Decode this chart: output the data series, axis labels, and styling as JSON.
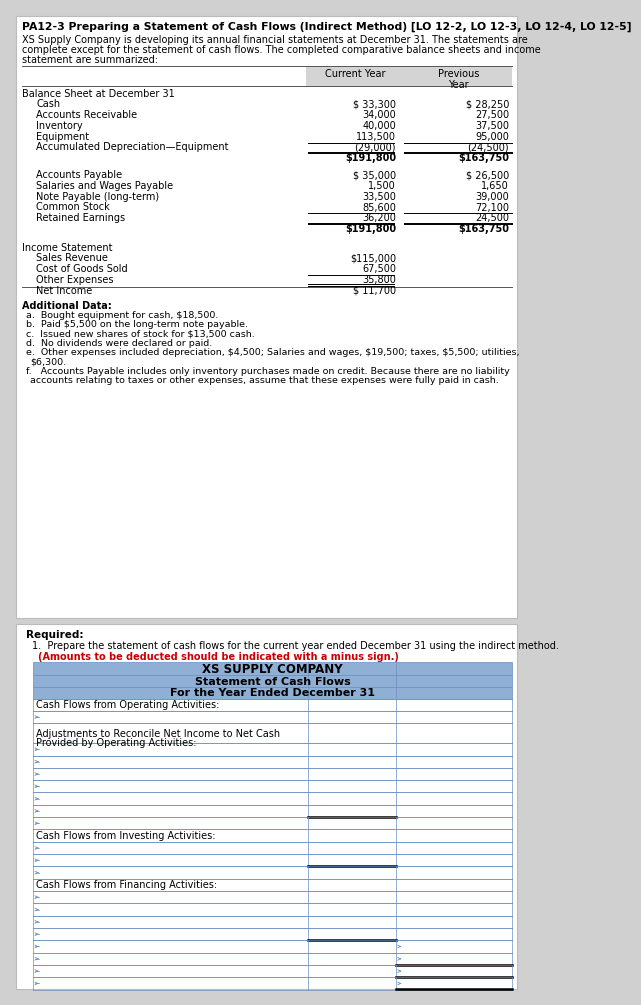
{
  "title": "PA12-3 Preparing a Statement of Cash Flows (Indirect Method) [LO 12-2, LO 12-3, LO 12-4, LO 12-5]",
  "intro_text": "XS Supply Company is developing its annual financial statements at December 31. The statements are\ncomplete except for the statement of cash flows. The completed comparative balance sheets and income\nstatement are summarized:",
  "balance_sheet_label": "Balance Sheet at December 31",
  "bs_assets": [
    [
      "Cash",
      "$ 33,300",
      "$ 28,250"
    ],
    [
      "Accounts Receivable",
      "34,000",
      "27,500"
    ],
    [
      "Inventory",
      "40,000",
      "37,500"
    ],
    [
      "Equipment",
      "113,500",
      "95,000"
    ],
    [
      "Accumulated Depreciation—Equipment",
      "(29,000)",
      "(24,500)"
    ]
  ],
  "bs_assets_total": [
    "$191,800",
    "$163,750"
  ],
  "bs_liabilities": [
    [
      "Accounts Payable",
      "$ 35,000",
      "$ 26,500"
    ],
    [
      "Salaries and Wages Payable",
      "1,500",
      "1,650"
    ],
    [
      "Note Payable (long-term)",
      "33,500",
      "39,000"
    ],
    [
      "Common Stock",
      "85,600",
      "72,100"
    ],
    [
      "Retained Earnings",
      "36,200",
      "24,500"
    ]
  ],
  "bs_liabilities_total": [
    "$191,800",
    "$163,750"
  ],
  "income_statement_label": "Income Statement",
  "is_items": [
    [
      "Sales Revenue",
      "$115,000"
    ],
    [
      "Cost of Goods Sold",
      "67,500"
    ],
    [
      "Other Expenses",
      "35,800"
    ]
  ],
  "is_net_income": [
    "Net Income",
    "$ 11,700"
  ],
  "additional_data_title": "Additional Data:",
  "additional_data": [
    "a.  Bought equipment for cash, $18,500.",
    "b.  Paid $5,500 on the long-term note payable.",
    "c.  Issued new shares of stock for $13,500 cash.",
    "d.  No dividends were declared or paid.",
    "e.  Other expenses included depreciation, $4,500; Salaries and wages, $19,500; taxes, $5,500; utilities,||     $6,300.",
    "f.   Accounts Payable includes only inventory purchases made on credit. Because there are no liability||     accounts relating to taxes or other expenses, assume that these expenses were fully paid in cash."
  ],
  "required_text": "Required:",
  "required_item": "1.  Prepare the statement of cash flows for the current year ended December 31 using the indirect method.",
  "required_note": "(Amounts to be deducted should be indicated with a minus sign.)",
  "cf_company": "XS SUPPLY COMPANY",
  "cf_title": "Statement of Cash Flows",
  "cf_subtitle": "For the Year Ended December 31",
  "header_bg": "#8fafd4",
  "table_border": "#6a8fbf",
  "page_bg": "#d0d0d0",
  "card_bg": "#ffffff",
  "col2_label": "Current Year",
  "col3_label": "Previous\nYear"
}
